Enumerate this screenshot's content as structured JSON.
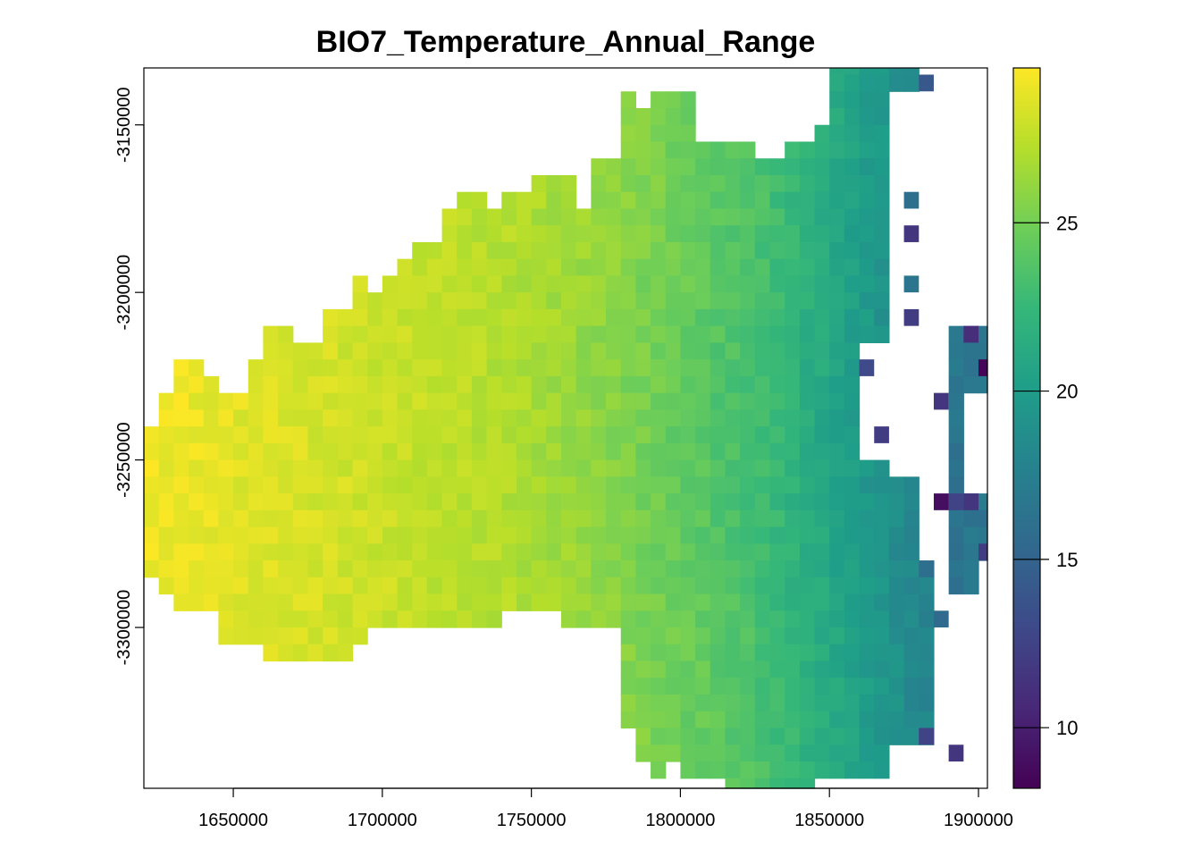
{
  "chart_data": {
    "type": "heatmap",
    "title": "BIO7_Temperature_Annual_Range",
    "xlabel": "",
    "ylabel": "",
    "xlim": [
      1620000,
      1903000
    ],
    "ylim": [
      -3348000,
      -3133000
    ],
    "x_ticks": [
      1650000,
      1700000,
      1750000,
      1800000,
      1850000,
      1900000
    ],
    "x_tick_labels": [
      "1650000",
      "1700000",
      "1750000",
      "1800000",
      "1850000",
      "1900000"
    ],
    "y_ticks": [
      -3150000,
      -3200000,
      -3250000,
      -3300000
    ],
    "y_tick_labels": [
      "-3150000",
      "-3200000",
      "-3250000",
      "-3300000"
    ],
    "colorbar": {
      "min": 8.2,
      "max": 29.6,
      "ticks": [
        10,
        15,
        20,
        25
      ],
      "tick_labels": [
        "10",
        "15",
        "20",
        "25"
      ],
      "palette": [
        "#440154",
        "#482878",
        "#3e4989",
        "#31688e",
        "#26828e",
        "#1f9e89",
        "#35b779",
        "#6ece58",
        "#b5de2b",
        "#fde725"
      ]
    },
    "grid": false,
    "legend_position": "right",
    "raster": {
      "cell_size": 5000,
      "x_start": 1620000,
      "y_start": -3130000,
      "columns": 57,
      "rows": 44,
      "scale_note": "values vary smoothly: ~29 in west, ~24-26 in centre, ~20 in east, isolated coastal cells 9-16",
      "coastal_cells": [
        {
          "x": 1882500,
          "y": -3137500,
          "value": 14.0
        },
        {
          "x": 1877500,
          "y": -3172500,
          "value": 16.0
        },
        {
          "x": 1877500,
          "y": -3182500,
          "value": 11.5
        },
        {
          "x": 1877500,
          "y": -3197500,
          "value": 16.5
        },
        {
          "x": 1877500,
          "y": -3207500,
          "value": 12.0
        },
        {
          "x": 1862500,
          "y": -3222500,
          "value": 13.0
        },
        {
          "x": 1897500,
          "y": -3212500,
          "value": 11.0
        },
        {
          "x": 1902500,
          "y": -3222500,
          "value": 8.5
        },
        {
          "x": 1887500,
          "y": -3232500,
          "value": 11.5
        },
        {
          "x": 1867500,
          "y": -3242500,
          "value": 12.0
        },
        {
          "x": 1887500,
          "y": -3262500,
          "value": 9.0
        },
        {
          "x": 1892500,
          "y": -3262500,
          "value": 12.5
        },
        {
          "x": 1897500,
          "y": -3262500,
          "value": 11.5
        },
        {
          "x": 1902500,
          "y": -3277500,
          "value": 12.0
        },
        {
          "x": 1882500,
          "y": -3282500,
          "value": 16.0
        },
        {
          "x": 1887500,
          "y": -3297500,
          "value": 15.5
        },
        {
          "x": 1882500,
          "y": -3332500,
          "value": 12.5
        },
        {
          "x": 1892500,
          "y": -3337500,
          "value": 11.5
        }
      ]
    }
  }
}
